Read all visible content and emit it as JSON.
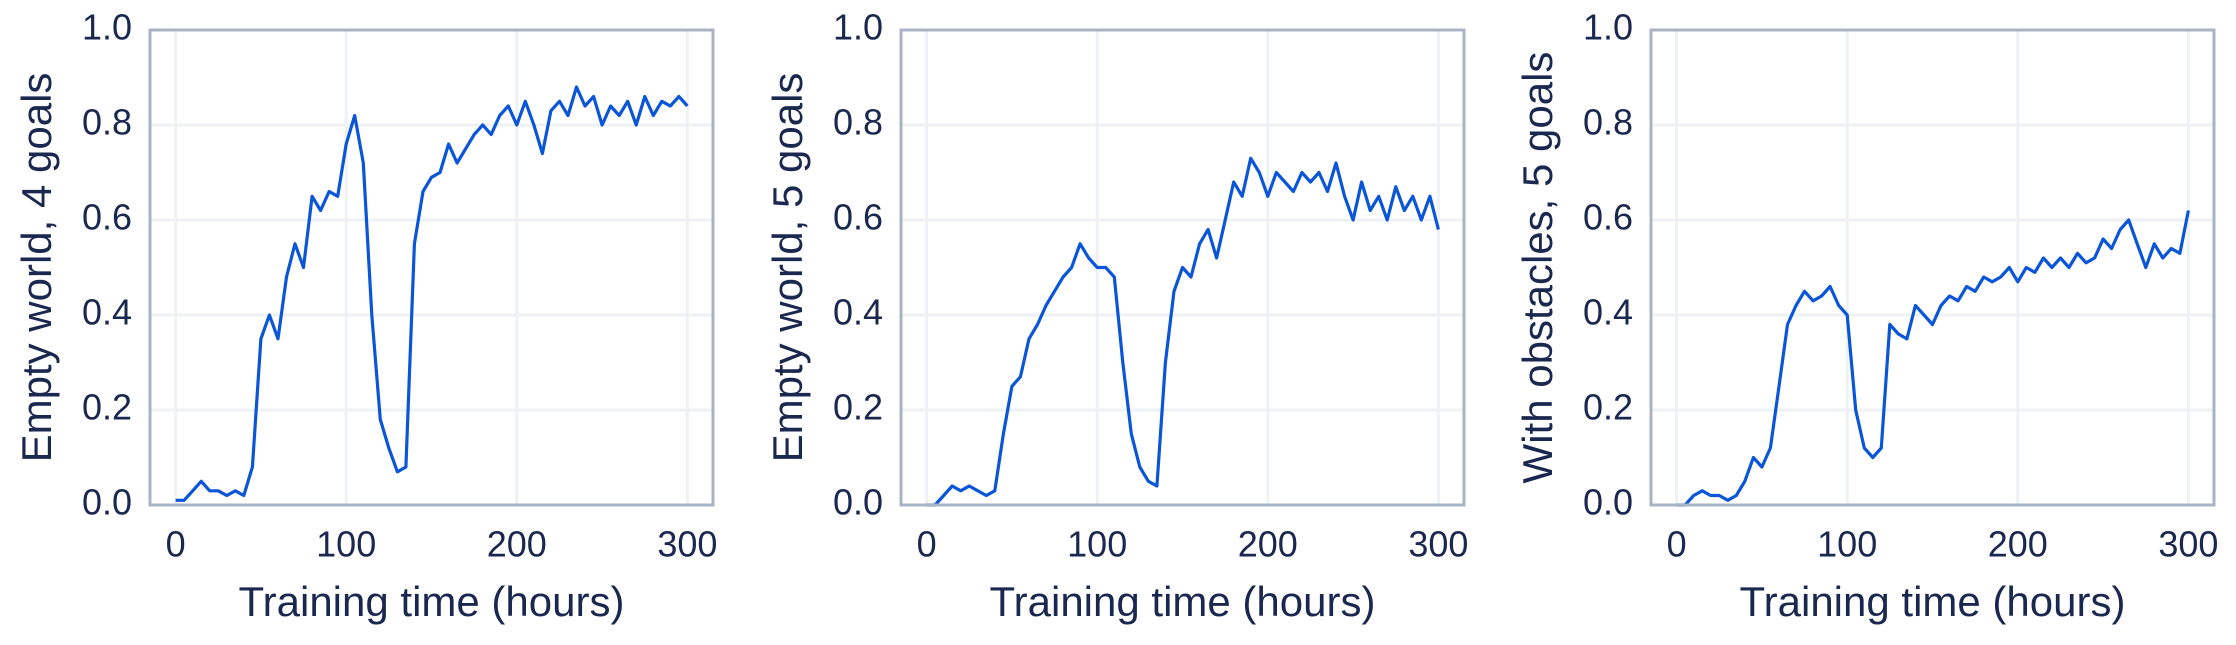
{
  "chart_data": [
    {
      "type": "line",
      "xlabel": "Training time (hours)",
      "ylabel": "Empty world, 4 goals",
      "color": "#0a55d8",
      "x": [
        0,
        5,
        10,
        15,
        20,
        25,
        30,
        35,
        40,
        45,
        50,
        55,
        60,
        65,
        70,
        75,
        80,
        85,
        90,
        95,
        100,
        105,
        110,
        115,
        120,
        125,
        130,
        135,
        140,
        145,
        150,
        155,
        160,
        165,
        170,
        175,
        180,
        185,
        190,
        195,
        200,
        205,
        210,
        215,
        220,
        225,
        230,
        235,
        240,
        245,
        250,
        255,
        260,
        265,
        270,
        275,
        280,
        285,
        290,
        295,
        300
      ],
      "values": [
        0.01,
        0.01,
        0.03,
        0.05,
        0.03,
        0.03,
        0.02,
        0.03,
        0.02,
        0.08,
        0.35,
        0.4,
        0.35,
        0.48,
        0.55,
        0.5,
        0.65,
        0.62,
        0.66,
        0.65,
        0.76,
        0.82,
        0.72,
        0.4,
        0.18,
        0.12,
        0.07,
        0.08,
        0.55,
        0.66,
        0.69,
        0.7,
        0.76,
        0.72,
        0.75,
        0.78,
        0.8,
        0.78,
        0.82,
        0.84,
        0.8,
        0.85,
        0.8,
        0.74,
        0.83,
        0.85,
        0.82,
        0.88,
        0.84,
        0.86,
        0.8,
        0.84,
        0.82,
        0.85,
        0.8,
        0.86,
        0.82,
        0.85,
        0.84,
        0.86,
        0.84
      ],
      "xlim": [
        -15,
        315
      ],
      "ylim": [
        0,
        1
      ],
      "xticks": [
        0,
        100,
        200,
        300
      ],
      "yticks": [
        {
          "value": 0,
          "label": "0.0"
        },
        {
          "value": 0.2,
          "label": "0.2"
        },
        {
          "value": 0.4,
          "label": "0.4"
        },
        {
          "value": 0.6,
          "label": "0.6"
        },
        {
          "value": 0.8,
          "label": "0.8"
        },
        {
          "value": 1,
          "label": "1.0"
        }
      ],
      "grid": true
    },
    {
      "type": "line",
      "xlabel": "Training time (hours)",
      "ylabel": "Empty world, 5 goals",
      "color": "#0a55d8",
      "x": [
        0,
        5,
        10,
        15,
        20,
        25,
        30,
        35,
        40,
        45,
        50,
        55,
        60,
        65,
        70,
        75,
        80,
        85,
        90,
        95,
        100,
        105,
        110,
        115,
        120,
        125,
        130,
        135,
        140,
        145,
        150,
        155,
        160,
        165,
        170,
        175,
        180,
        185,
        190,
        195,
        200,
        205,
        210,
        215,
        220,
        225,
        230,
        235,
        240,
        245,
        250,
        255,
        260,
        265,
        270,
        275,
        280,
        285,
        290,
        295,
        300
      ],
      "values": [
        0,
        0,
        0.02,
        0.04,
        0.03,
        0.04,
        0.03,
        0.02,
        0.03,
        0.15,
        0.25,
        0.27,
        0.35,
        0.38,
        0.42,
        0.45,
        0.48,
        0.5,
        0.55,
        0.52,
        0.5,
        0.5,
        0.48,
        0.3,
        0.15,
        0.08,
        0.05,
        0.04,
        0.3,
        0.45,
        0.5,
        0.48,
        0.55,
        0.58,
        0.52,
        0.6,
        0.68,
        0.65,
        0.73,
        0.7,
        0.65,
        0.7,
        0.68,
        0.66,
        0.7,
        0.68,
        0.7,
        0.66,
        0.72,
        0.65,
        0.6,
        0.68,
        0.62,
        0.65,
        0.6,
        0.67,
        0.62,
        0.65,
        0.6,
        0.65,
        0.58
      ],
      "xlim": [
        -15,
        315
      ],
      "ylim": [
        0,
        1
      ],
      "xticks": [
        0,
        100,
        200,
        300
      ],
      "yticks": [
        {
          "value": 0,
          "label": "0.0"
        },
        {
          "value": 0.2,
          "label": "0.2"
        },
        {
          "value": 0.4,
          "label": "0.4"
        },
        {
          "value": 0.6,
          "label": "0.6"
        },
        {
          "value": 0.8,
          "label": "0.8"
        },
        {
          "value": 1,
          "label": "1.0"
        }
      ],
      "grid": true
    },
    {
      "type": "line",
      "xlabel": "Training time (hours)",
      "ylabel": "With obstacles, 5 goals",
      "color": "#0a55d8",
      "x": [
        0,
        5,
        10,
        15,
        20,
        25,
        30,
        35,
        40,
        45,
        50,
        55,
        60,
        65,
        70,
        75,
        80,
        85,
        90,
        95,
        100,
        105,
        110,
        115,
        120,
        125,
        130,
        135,
        140,
        145,
        150,
        155,
        160,
        165,
        170,
        175,
        180,
        185,
        190,
        195,
        200,
        205,
        210,
        215,
        220,
        225,
        230,
        235,
        240,
        245,
        250,
        255,
        260,
        265,
        270,
        275,
        280,
        285,
        290,
        295,
        300
      ],
      "values": [
        0,
        0,
        0.02,
        0.03,
        0.02,
        0.02,
        0.01,
        0.02,
        0.05,
        0.1,
        0.08,
        0.12,
        0.25,
        0.38,
        0.42,
        0.45,
        0.43,
        0.44,
        0.46,
        0.42,
        0.4,
        0.2,
        0.12,
        0.1,
        0.12,
        0.38,
        0.36,
        0.35,
        0.42,
        0.4,
        0.38,
        0.42,
        0.44,
        0.43,
        0.46,
        0.45,
        0.48,
        0.47,
        0.48,
        0.5,
        0.47,
        0.5,
        0.49,
        0.52,
        0.5,
        0.52,
        0.5,
        0.53,
        0.51,
        0.52,
        0.56,
        0.54,
        0.58,
        0.6,
        0.55,
        0.5,
        0.55,
        0.52,
        0.54,
        0.53,
        0.62
      ],
      "xlim": [
        -15,
        315
      ],
      "ylim": [
        0,
        1
      ],
      "xticks": [
        0,
        100,
        200,
        300
      ],
      "yticks": [
        {
          "value": 0,
          "label": "0.0"
        },
        {
          "value": 0.2,
          "label": "0.2"
        },
        {
          "value": 0.4,
          "label": "0.4"
        },
        {
          "value": 0.6,
          "label": "0.6"
        },
        {
          "value": 0.8,
          "label": "0.8"
        },
        {
          "value": 1,
          "label": "1.0"
        }
      ],
      "grid": true
    }
  ]
}
